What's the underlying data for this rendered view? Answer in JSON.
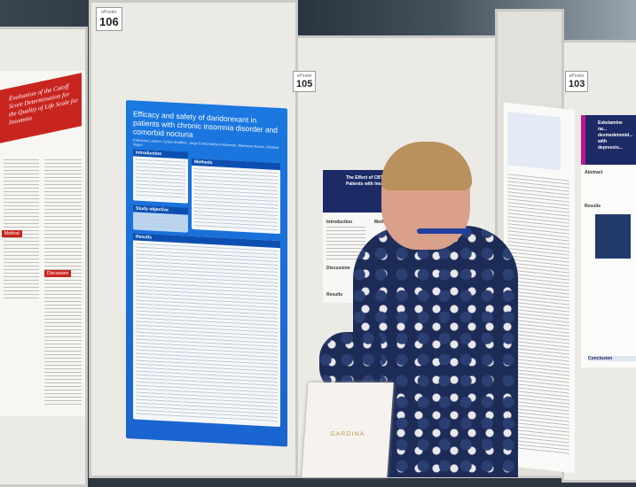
{
  "boards": [
    {
      "number": "106",
      "label": "ePoster"
    },
    {
      "number": "105",
      "label": "ePoster"
    },
    {
      "number": "103",
      "label": "ePoster"
    }
  ],
  "main_poster": {
    "title": "Efficacy and safety of daridorexant in patients with chronic insomnia disorder and comorbid nocturia",
    "authors": "Katharina Lederer, Sylvia Shaffner, Jorge Enrile Barbera Maranda, Marianne Rauch, Richard Nagel",
    "sections": [
      "Introduction",
      "Methods",
      "Study objective",
      "Results"
    ],
    "color": "#1a6fd8"
  },
  "left_poster": {
    "title": "Evaluation of the Cutoff Score Determination for the Quality of Life Scale for Insomnia",
    "sections": [
      "Method",
      "Discussion"
    ],
    "color": "#c9251f"
  },
  "center_poster": {
    "title": "The Effect of CBT-I on P... Patients with Inso...",
    "sections": [
      "Introduction",
      "Methods",
      "Discussion",
      "Results"
    ]
  },
  "right_poster": {
    "title": "Esketamine na... dexmedetomid... with depressio...",
    "sections": [
      "Abstract",
      "Results",
      "Conclusion"
    ]
  },
  "bag": {
    "brand": "GARDINA"
  }
}
